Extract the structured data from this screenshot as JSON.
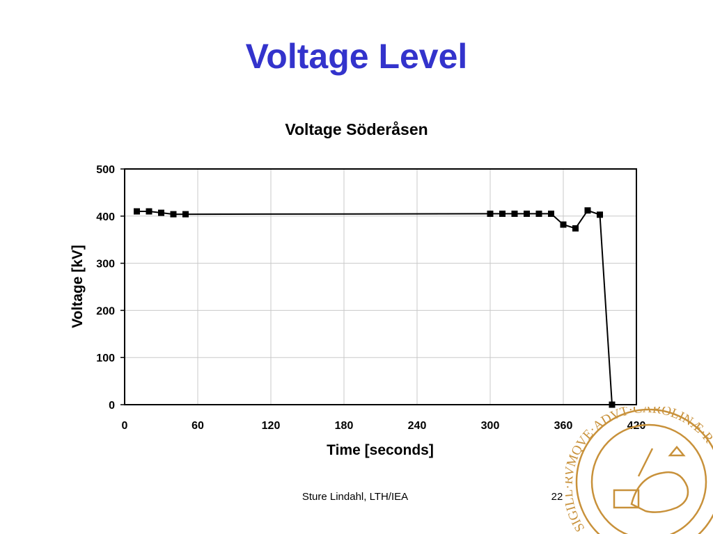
{
  "slide": {
    "title": "Voltage Level",
    "footer_author": "Sture Lindahl, LTH/IEA",
    "page_number": "22"
  },
  "seal": {
    "text": "SIGILL·RVMQVE·ADVT·CAROLINÆ·RVM",
    "color": "#c8913a"
  },
  "chart_data": {
    "type": "line",
    "title": "Voltage Söderåsen",
    "xlabel": "Time [seconds]",
    "ylabel": "Voltage [kV]",
    "xlim": [
      0,
      420
    ],
    "ylim": [
      0,
      500
    ],
    "xticks": [
      0,
      60,
      120,
      180,
      240,
      300,
      360,
      420
    ],
    "yticks": [
      0,
      100,
      200,
      300,
      400,
      500
    ],
    "grid": true,
    "legend": "none",
    "line_color": "#000000",
    "series": [
      {
        "x": [
          10,
          20,
          30,
          40,
          50,
          300,
          310,
          320,
          330,
          340,
          350,
          360,
          370,
          380,
          390,
          400
        ],
        "y": [
          410,
          410,
          407,
          404,
          404,
          405,
          405,
          405,
          405,
          405,
          405,
          382,
          374,
          412,
          403,
          0
        ]
      }
    ]
  }
}
